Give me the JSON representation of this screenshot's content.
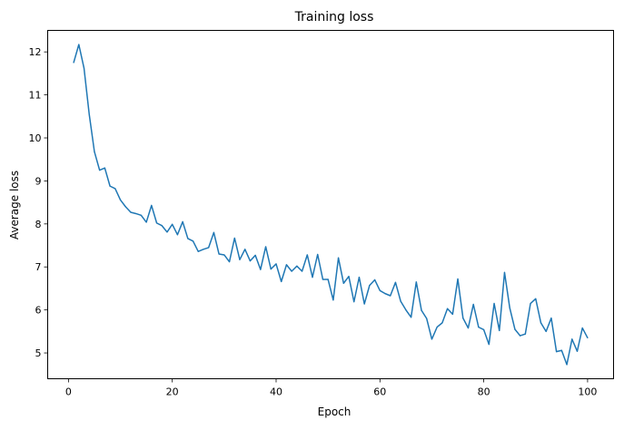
{
  "chart_data": {
    "type": "line",
    "title": "Training loss",
    "xlabel": "Epoch",
    "ylabel": "Average loss",
    "xlim": [
      -4,
      105
    ],
    "ylim": [
      4.4,
      12.5
    ],
    "xticks": [
      0,
      20,
      40,
      60,
      80,
      100
    ],
    "yticks": [
      5,
      6,
      7,
      8,
      9,
      10,
      11,
      12
    ],
    "grid": false,
    "line_color": "#1f77b4",
    "series": [
      {
        "x": [
          1,
          2,
          3,
          4,
          5,
          6,
          7,
          8,
          9,
          10,
          11,
          12,
          13,
          14,
          15,
          16,
          17,
          18,
          19,
          20,
          21,
          22,
          23,
          24,
          25,
          26,
          27,
          28,
          29,
          30,
          31,
          32,
          33,
          34,
          35,
          36,
          37,
          38,
          39,
          40,
          41,
          42,
          43,
          44,
          45,
          46,
          47,
          48,
          49,
          50,
          51,
          52,
          53,
          54,
          55,
          56,
          57,
          58,
          59,
          60,
          61,
          62,
          63,
          64,
          65,
          66,
          67,
          68,
          69,
          70,
          71,
          72,
          73,
          74,
          75,
          76,
          77,
          78,
          79,
          80,
          81,
          82,
          83,
          84,
          85,
          86,
          87,
          88,
          89,
          90,
          91,
          92,
          93,
          94,
          95,
          96,
          97,
          98,
          99,
          100
        ],
        "values": [
          11.75,
          12.17,
          11.62,
          10.55,
          9.68,
          9.25,
          9.3,
          8.88,
          8.82,
          8.56,
          8.4,
          8.27,
          8.24,
          8.2,
          8.04,
          8.43,
          8.02,
          7.96,
          7.81,
          7.99,
          7.75,
          8.05,
          7.66,
          7.6,
          7.36,
          7.41,
          7.45,
          7.8,
          7.3,
          7.28,
          7.12,
          7.67,
          7.17,
          7.41,
          7.14,
          7.27,
          6.94,
          7.47,
          6.95,
          7.07,
          6.66,
          7.05,
          6.9,
          7.02,
          6.9,
          7.28,
          6.76,
          7.29,
          6.71,
          6.71,
          6.23,
          7.21,
          6.62,
          6.78,
          6.19,
          6.76,
          6.14,
          6.57,
          6.7,
          6.45,
          6.38,
          6.33,
          6.64,
          6.2,
          6.0,
          5.83,
          6.65,
          5.99,
          5.8,
          5.32,
          5.6,
          5.7,
          6.03,
          5.9,
          6.72,
          5.81,
          5.58,
          6.13,
          5.6,
          5.54,
          5.2,
          6.15,
          5.52,
          6.87,
          6.05,
          5.55,
          5.4,
          5.44,
          6.15,
          6.26,
          5.7,
          5.5,
          5.81,
          5.03,
          5.06,
          4.73,
          5.32,
          5.04,
          5.58,
          5.35
        ]
      }
    ]
  }
}
